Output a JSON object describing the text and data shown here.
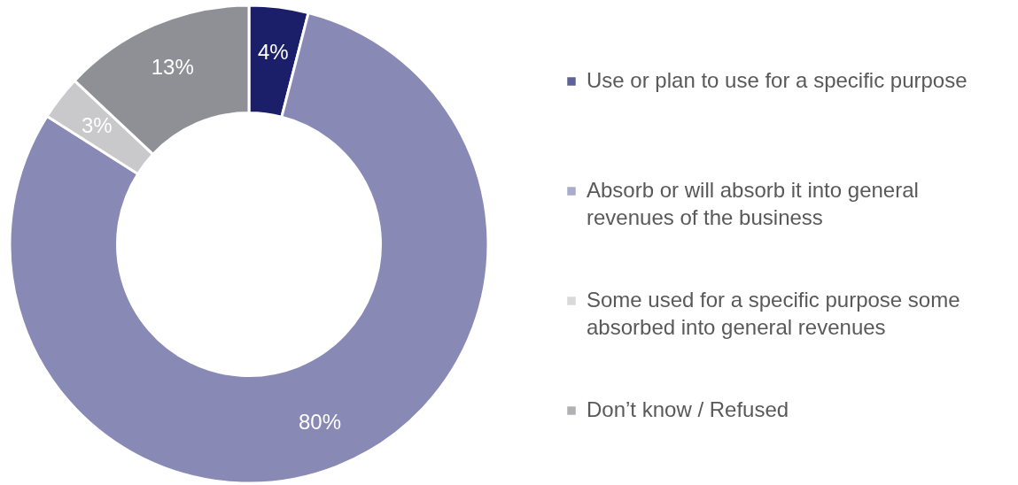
{
  "chart_data": {
    "type": "donut",
    "categories": [
      "Use or plan to use for a specific purpose",
      "Absorb or will absorb it into general revenues of the business",
      "Some used for a specific purpose some absorbed into general revenues",
      "Don’t know / Refused"
    ],
    "values": [
      4,
      80,
      3,
      13
    ],
    "colors": [
      "#1b1f6a",
      "#8889b5",
      "#c9c9cb",
      "#8e9095"
    ],
    "value_labels": [
      "4%",
      "80%",
      "3%",
      "13%"
    ],
    "legend": "right"
  }
}
